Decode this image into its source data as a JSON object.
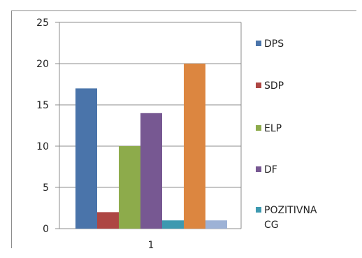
{
  "chart_data": {
    "type": "bar",
    "categories": [
      "1"
    ],
    "series": [
      {
        "name": "DPS",
        "values": [
          17
        ],
        "color": "#4a74aa"
      },
      {
        "name": "SDP",
        "values": [
          2
        ],
        "color": "#ad4643"
      },
      {
        "name": "ELP",
        "values": [
          10
        ],
        "color": "#8dab4b"
      },
      {
        "name": "DF",
        "values": [
          14
        ],
        "color": "#775892"
      },
      {
        "name": "POZITIVNA CG",
        "values": [
          1
        ],
        "color": "#3d99b0"
      },
      {
        "name": "",
        "values": [
          20
        ],
        "color": "#dc8640"
      },
      {
        "name": "",
        "values": [
          1
        ],
        "color": "#9db2d6"
      }
    ],
    "ylim": [
      0,
      25
    ],
    "yticks": [
      "0",
      "5",
      "10",
      "15",
      "20",
      "25"
    ],
    "grid": true,
    "legend": "right",
    "legend_entries": [
      {
        "lines": [
          "DPS"
        ],
        "color": "#4a74aa"
      },
      {
        "lines": [
          "SDP"
        ],
        "color": "#ad4643"
      },
      {
        "lines": [
          "ELP"
        ],
        "color": "#8dab4b"
      },
      {
        "lines": [
          "DF"
        ],
        "color": "#775892"
      },
      {
        "lines": [
          "POZITIVNA",
          "CG"
        ],
        "color": "#3d99b0"
      }
    ]
  }
}
